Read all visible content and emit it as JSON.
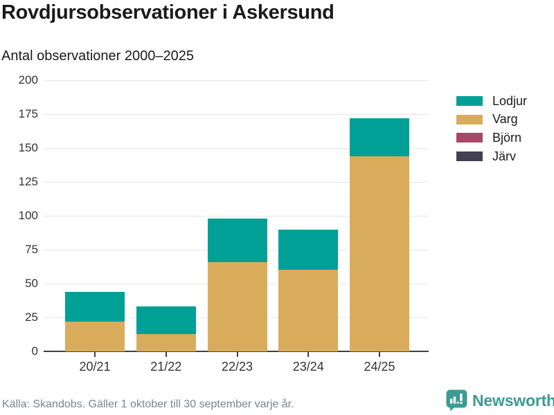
{
  "header": {
    "title": "Rovdjursobservationer i Askersund",
    "subtitle": "Antal observationer 2000–2025"
  },
  "chart_data": {
    "type": "bar",
    "stacked": true,
    "title": "Rovdjursobservationer i Askersund",
    "subtitle": "Antal observationer 2000–2025",
    "categories": [
      "20/21",
      "21/22",
      "22/23",
      "23/24",
      "24/25"
    ],
    "series": [
      {
        "name": "Lodjur",
        "color": "#00a096",
        "values": [
          22,
          20,
          32,
          30,
          28
        ]
      },
      {
        "name": "Varg",
        "color": "#d9ac5c",
        "values": [
          22,
          13,
          66,
          60,
          144
        ]
      },
      {
        "name": "Björn",
        "color": "#a84768",
        "values": [
          0,
          0,
          0,
          0,
          0
        ]
      },
      {
        "name": "Järv",
        "color": "#434050",
        "values": [
          0,
          0,
          0,
          0,
          0
        ]
      }
    ],
    "totals": [
      44,
      33,
      98,
      90,
      172
    ],
    "xlabel": "",
    "ylabel": "Antal observationer",
    "ylim": [
      0,
      200
    ],
    "yticks": [
      0,
      25,
      50,
      75,
      100,
      125,
      150,
      175,
      200
    ],
    "grid": "horizontal",
    "legend_position": "right"
  },
  "footer": {
    "source": "Källa: Skandobs. Gäller 1 oktober till 30 september varje år."
  },
  "branding": {
    "name": "Newsworthy",
    "color": "#3d9b93",
    "icon": "bar-chart-speech-bubble-icon"
  }
}
